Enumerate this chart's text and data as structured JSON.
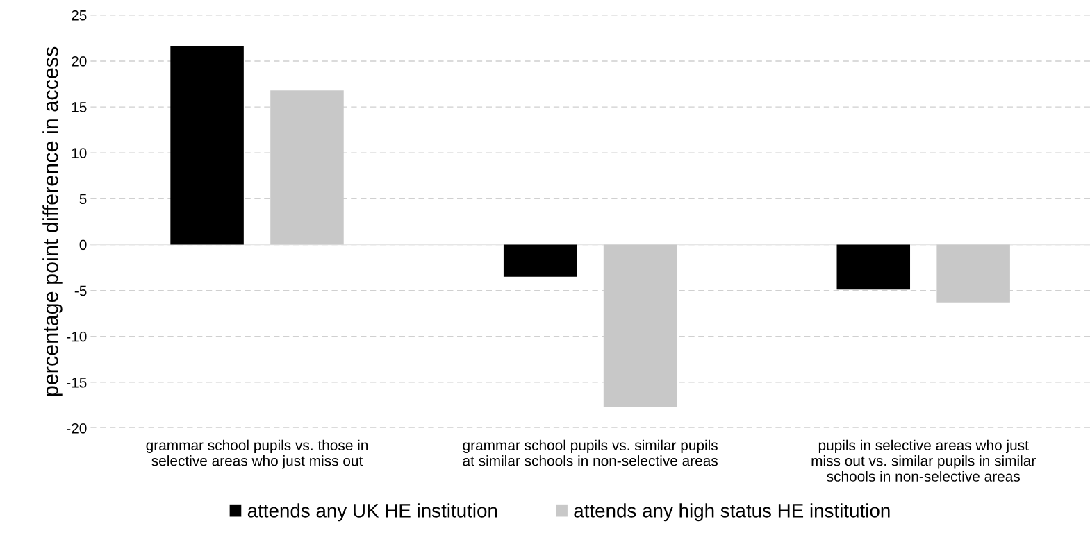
{
  "chart_data": {
    "type": "bar",
    "ylabel": "percentage point difference in access",
    "categories": [
      "grammar school pupils vs. those in\nselective areas who just miss out",
      "grammar school pupils vs. similar pupils\nat similar schools in non-selective areas",
      "pupils in selective areas who just\nmiss out vs. similar pupils in similar\nschools in non-selective areas"
    ],
    "series": [
      {
        "name": "attends any UK HE institution",
        "color": "#000000",
        "values": [
          21.6,
          -3.5,
          -4.9
        ]
      },
      {
        "name": "attends any high status HE institution",
        "color": "#c8c8c8",
        "values": [
          16.8,
          -17.7,
          -6.3
        ]
      }
    ],
    "ylim": [
      -20,
      25
    ],
    "yticks": [
      -20,
      -15,
      -10,
      -5,
      0,
      5,
      10,
      15,
      20,
      25
    ],
    "grid": "y",
    "legend": "bottom"
  }
}
